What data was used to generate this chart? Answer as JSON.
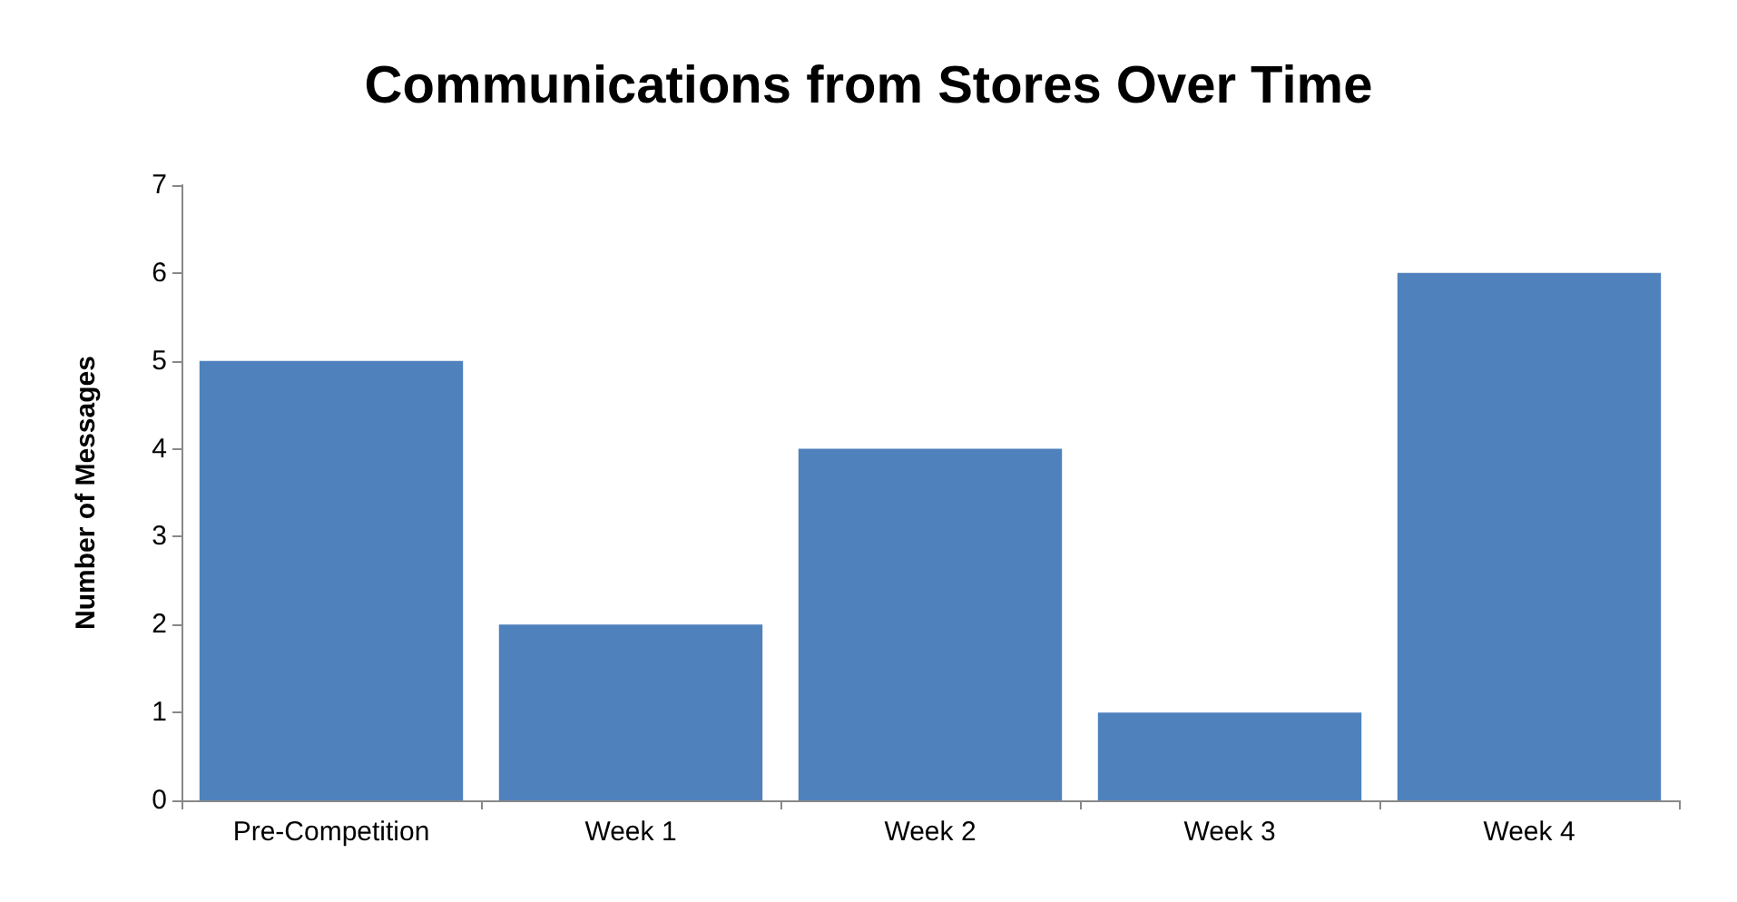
{
  "chart_data": {
    "type": "bar",
    "title": "Communications from Stores Over Time",
    "ylabel": "Number of Messages",
    "categories": [
      "Pre-Competition",
      "Week 1",
      "Week 2",
      "Week 3",
      "Week 4"
    ],
    "values": [
      5,
      2,
      4,
      1,
      6
    ],
    "color": "#4f81bd",
    "ylim": [
      0,
      7
    ],
    "yticks": [
      0,
      1,
      2,
      3,
      4,
      5,
      6,
      7
    ],
    "grid": false
  }
}
